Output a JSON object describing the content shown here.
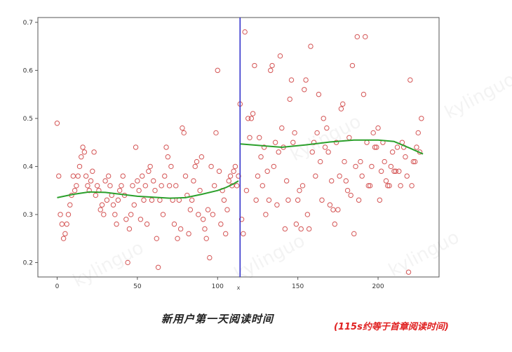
{
  "chart_data": {
    "type": "scatter",
    "title": "",
    "xlabel": "x",
    "ylabel": "",
    "xlim": [
      -12,
      238
    ],
    "ylim": [
      0.17,
      0.71
    ],
    "xticks": [
      "0",
      "50",
      "100",
      "150",
      "200"
    ],
    "yticks": [
      "0.2",
      "0.3",
      "0.4",
      "0.5",
      "0.6",
      "0.7"
    ],
    "grid": false,
    "vline_x": 114,
    "colors": {
      "points": "#d45555",
      "fit": "#2ca02c",
      "vline": "#3333cc"
    },
    "points": {
      "x": [
        0,
        1,
        2,
        3,
        4,
        5,
        6,
        7,
        8,
        9,
        10,
        11,
        12,
        13,
        14,
        15,
        16,
        17,
        18,
        19,
        20,
        21,
        22,
        23,
        24,
        25,
        26,
        27,
        28,
        29,
        30,
        31,
        32,
        33,
        34,
        35,
        36,
        37,
        38,
        39,
        40,
        41,
        42,
        43,
        44,
        45,
        46,
        47,
        48,
        49,
        50,
        51,
        52,
        53,
        54,
        55,
        56,
        57,
        58,
        59,
        60,
        61,
        62,
        63,
        64,
        65,
        66,
        67,
        68,
        69,
        70,
        71,
        72,
        73,
        74,
        75,
        76,
        77,
        78,
        79,
        80,
        81,
        82,
        83,
        84,
        85,
        86,
        87,
        88,
        89,
        90,
        91,
        92,
        93,
        94,
        95,
        96,
        97,
        98,
        99,
        100,
        101,
        102,
        103,
        104,
        105,
        106,
        107,
        108,
        109,
        110,
        111,
        112,
        113,
        114,
        115,
        116,
        117,
        118,
        119,
        120,
        121,
        122,
        123,
        124,
        125,
        126,
        127,
        128,
        129,
        130,
        131,
        132,
        133,
        134,
        135,
        136,
        137,
        138,
        139,
        140,
        141,
        142,
        143,
        144,
        145,
        146,
        147,
        148,
        149,
        150,
        151,
        152,
        153,
        154,
        155,
        156,
        157,
        158,
        159,
        160,
        161,
        162,
        163,
        164,
        165,
        166,
        167,
        168,
        169,
        170,
        171,
        172,
        173,
        174,
        175,
        176,
        177,
        178,
        179,
        180,
        181,
        182,
        183,
        184,
        185,
        186,
        187,
        188,
        189,
        190,
        191,
        192,
        193,
        194,
        195,
        196,
        197,
        198,
        199,
        200,
        201,
        202,
        203,
        204,
        205,
        206,
        207,
        208,
        209,
        210,
        211,
        212,
        213,
        214,
        215,
        216,
        217,
        218,
        219,
        220,
        221,
        222,
        223,
        224,
        225,
        226,
        227
      ],
      "y": [
        0.49,
        0.38,
        0.3,
        0.28,
        0.25,
        0.26,
        0.28,
        0.3,
        0.32,
        0.34,
        0.38,
        0.35,
        0.36,
        0.38,
        0.4,
        0.42,
        0.44,
        0.43,
        0.38,
        0.36,
        0.35,
        0.37,
        0.39,
        0.43,
        0.34,
        0.36,
        0.35,
        0.31,
        0.32,
        0.3,
        0.37,
        0.33,
        0.38,
        0.36,
        0.34,
        0.32,
        0.3,
        0.28,
        0.33,
        0.35,
        0.36,
        0.38,
        0.34,
        0.29,
        0.2,
        0.27,
        0.3,
        0.36,
        0.32,
        0.44,
        0.37,
        0.35,
        0.29,
        0.38,
        0.33,
        0.36,
        0.28,
        0.39,
        0.4,
        0.33,
        0.37,
        0.35,
        0.25,
        0.19,
        0.33,
        0.36,
        0.3,
        0.38,
        0.44,
        0.42,
        0.36,
        0.4,
        0.33,
        0.28,
        0.36,
        0.25,
        0.33,
        0.27,
        0.48,
        0.47,
        0.38,
        0.34,
        0.26,
        0.31,
        0.33,
        0.37,
        0.4,
        0.41,
        0.3,
        0.35,
        0.42,
        0.29,
        0.27,
        0.25,
        0.31,
        0.21,
        0.4,
        0.3,
        0.36,
        0.47,
        0.6,
        0.39,
        0.28,
        0.35,
        0.33,
        0.26,
        0.31,
        0.37,
        0.38,
        0.36,
        0.39,
        0.4,
        0.36,
        0.38,
        0.53,
        0.29,
        0.26,
        0.68,
        0.35,
        0.5,
        0.46,
        0.5,
        0.51,
        0.61,
        0.33,
        0.38,
        0.46,
        0.42,
        0.36,
        0.44,
        0.3,
        0.39,
        0.33,
        0.6,
        0.61,
        0.4,
        0.45,
        0.32,
        0.43,
        0.63,
        0.48,
        0.44,
        0.27,
        0.37,
        0.33,
        0.54,
        0.58,
        0.45,
        0.47,
        0.28,
        0.33,
        0.35,
        0.27,
        0.36,
        0.56,
        0.58,
        0.3,
        0.27,
        0.65,
        0.43,
        0.45,
        0.38,
        0.47,
        0.55,
        0.41,
        0.33,
        0.5,
        0.44,
        0.48,
        0.43,
        0.32,
        0.37,
        0.31,
        0.28,
        0.45,
        0.31,
        0.38,
        0.52,
        0.53,
        0.41,
        0.37,
        0.35,
        0.46,
        0.34,
        0.61,
        0.26,
        0.4,
        0.67,
        0.33,
        0.41,
        0.38,
        0.55,
        0.67,
        0.45,
        0.36,
        0.36,
        0.4,
        0.47,
        0.44,
        0.44,
        0.48,
        0.33,
        0.39,
        0.45,
        0.41,
        0.37,
        0.36,
        0.36,
        0.4,
        0.43,
        0.39,
        0.39,
        0.44,
        0.39,
        0.36,
        0.45,
        0.44,
        0.42,
        0.38,
        0.18,
        0.58,
        0.36,
        0.41,
        0.41,
        0.44,
        0.47,
        0.43,
        0.5
      ]
    },
    "fit_left": {
      "x": [
        0,
        10,
        20,
        30,
        40,
        50,
        60,
        70,
        80,
        90,
        100,
        105,
        110,
        113
      ],
      "y": [
        0.335,
        0.342,
        0.347,
        0.346,
        0.342,
        0.338,
        0.336,
        0.334,
        0.335,
        0.342,
        0.35,
        0.356,
        0.364,
        0.37
      ]
    },
    "fit_right": {
      "x": [
        114,
        125,
        140,
        155,
        170,
        185,
        200,
        210,
        220,
        228
      ],
      "y": [
        0.447,
        0.444,
        0.44,
        0.445,
        0.451,
        0.455,
        0.455,
        0.452,
        0.438,
        0.426
      ]
    }
  },
  "caption": "新用户第一天阅读时间",
  "note": "(115s约等于首章阅读时间)",
  "watermark": "kylinguo"
}
